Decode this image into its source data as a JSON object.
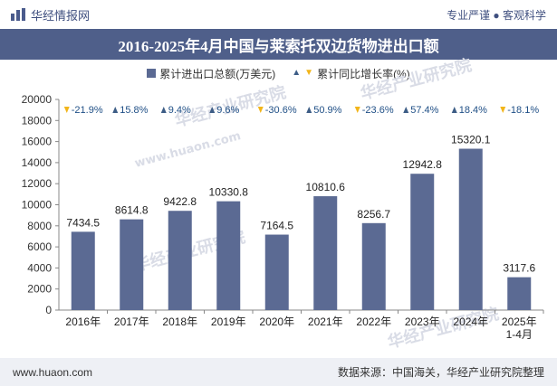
{
  "header": {
    "brand_name": "华经情报网",
    "tagline": "专业严谨 ● 客观科学"
  },
  "title": "2016-2025年4月中国与莱索托双边货物进出口额",
  "legend": {
    "series_label": "累计进出口总额(万美元)",
    "growth_label": "累计同比增长率(%)"
  },
  "footer": {
    "website": "www.huaon.com",
    "source": "数据来源：中国海关，华经产业研究院整理"
  },
  "watermarks": [
    "华经产业研究院",
    "www.huaon.com"
  ],
  "colors": {
    "bar": "#5b6a93",
    "title_bg": "#4f5f8a",
    "up": "#3d5d86",
    "down": "#f2b51a",
    "growth_text": "#1f4f86"
  },
  "chart_data": {
    "type": "bar",
    "categories": [
      "2016年",
      "2017年",
      "2018年",
      "2019年",
      "2020年",
      "2021年",
      "2022年",
      "2023年",
      "2024年",
      "2025年\n1-4月"
    ],
    "values": [
      7434.5,
      8614.8,
      9422.8,
      10330.8,
      7164.5,
      10810.6,
      8256.7,
      12942.8,
      15320.1,
      3117.6
    ],
    "value_labels": [
      "7434.5",
      "8614.8",
      "9422.8",
      "10330.8",
      "7164.5",
      "10810.6",
      "8256.7",
      "12942.8",
      "15320.1",
      "3117.6"
    ],
    "growth": [
      -21.9,
      15.8,
      9.4,
      9.6,
      -30.6,
      50.9,
      -23.6,
      57.4,
      18.4,
      -18.1
    ],
    "growth_labels": [
      "-21.9%",
      "15.8%",
      "9.4%",
      "9.6%",
      "-30.6%",
      "50.9%",
      "-23.6%",
      "57.4%",
      "18.4%",
      "-18.1%"
    ],
    "yticks": [
      "0",
      "2000",
      "4000",
      "6000",
      "8000",
      "10000",
      "12000",
      "14000",
      "16000",
      "18000",
      "20000"
    ],
    "ylim": [
      0,
      20000
    ],
    "grid": false,
    "legend_position": "top"
  }
}
